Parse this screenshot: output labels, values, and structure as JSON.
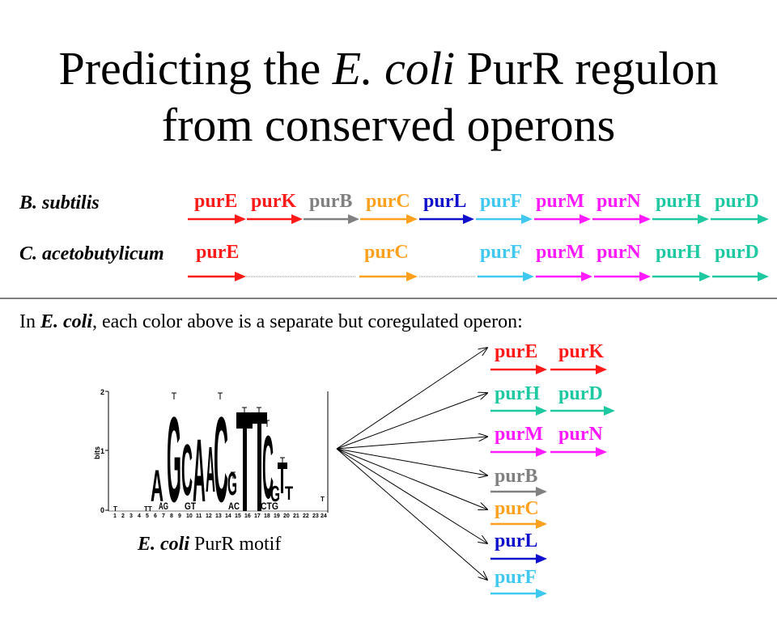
{
  "title": {
    "line1_pre": "Predicting the",
    "line1_species": "E. coli",
    "line1_post": "PurR regulon",
    "line2": "from conserved operons"
  },
  "species_rows": [
    {
      "name": "B. subtilis",
      "genes": [
        {
          "label": "purE",
          "color": "#ff1a1a"
        },
        {
          "label": "purK",
          "color": "#ff1a1a"
        },
        {
          "label": "purB",
          "color": "#808080"
        },
        {
          "label": "purC",
          "color": "#ffa01e"
        },
        {
          "label": "purL",
          "color": "#1010cc"
        },
        {
          "label": "purF",
          "color": "#40c8f0"
        },
        {
          "label": "purM",
          "color": "#ff1aff"
        },
        {
          "label": "purN",
          "color": "#ff1aff"
        },
        {
          "label": "purH",
          "color": "#1ec8a0"
        },
        {
          "label": "purD",
          "color": "#1ec8a0"
        }
      ]
    },
    {
      "name": "C. acetobutylicum",
      "genes": [
        {
          "label": "purE",
          "color": "#ff1a1a"
        },
        {
          "label": "purC",
          "color": "#ffa01e"
        },
        {
          "label": "purF",
          "color": "#40c8f0"
        },
        {
          "label": "purM",
          "color": "#ff1aff"
        },
        {
          "label": "purN",
          "color": "#ff1aff"
        },
        {
          "label": "purH",
          "color": "#1ec8a0"
        },
        {
          "label": "purD",
          "color": "#1ec8a0"
        }
      ]
    }
  ],
  "caption": {
    "pre": "In",
    "species": "E. coli",
    "post": ", each color above is a separate but coregulated operon:"
  },
  "motif": {
    "caption_species": "E. coli",
    "caption_post": "PurR motif",
    "ylabel": "bits",
    "yticks": [
      "2",
      "1",
      "0"
    ]
  },
  "ecoli_operons": [
    {
      "genes": [
        {
          "label": "purE",
          "color": "#ff1a1a"
        },
        {
          "label": "purK",
          "color": "#ff1a1a"
        }
      ]
    },
    {
      "genes": [
        {
          "label": "purH",
          "color": "#1ec8a0"
        },
        {
          "label": "purD",
          "color": "#1ec8a0"
        }
      ]
    },
    {
      "genes": [
        {
          "label": "purM",
          "color": "#ff1aff"
        },
        {
          "label": "purN",
          "color": "#ff1aff"
        }
      ]
    },
    {
      "genes": [
        {
          "label": "purB",
          "color": "#808080"
        }
      ]
    },
    {
      "genes": [
        {
          "label": "purC",
          "color": "#ffa01e"
        }
      ]
    },
    {
      "genes": [
        {
          "label": "purL",
          "color": "#1010cc"
        }
      ]
    },
    {
      "genes": [
        {
          "label": "purF",
          "color": "#40c8f0"
        }
      ]
    }
  ]
}
